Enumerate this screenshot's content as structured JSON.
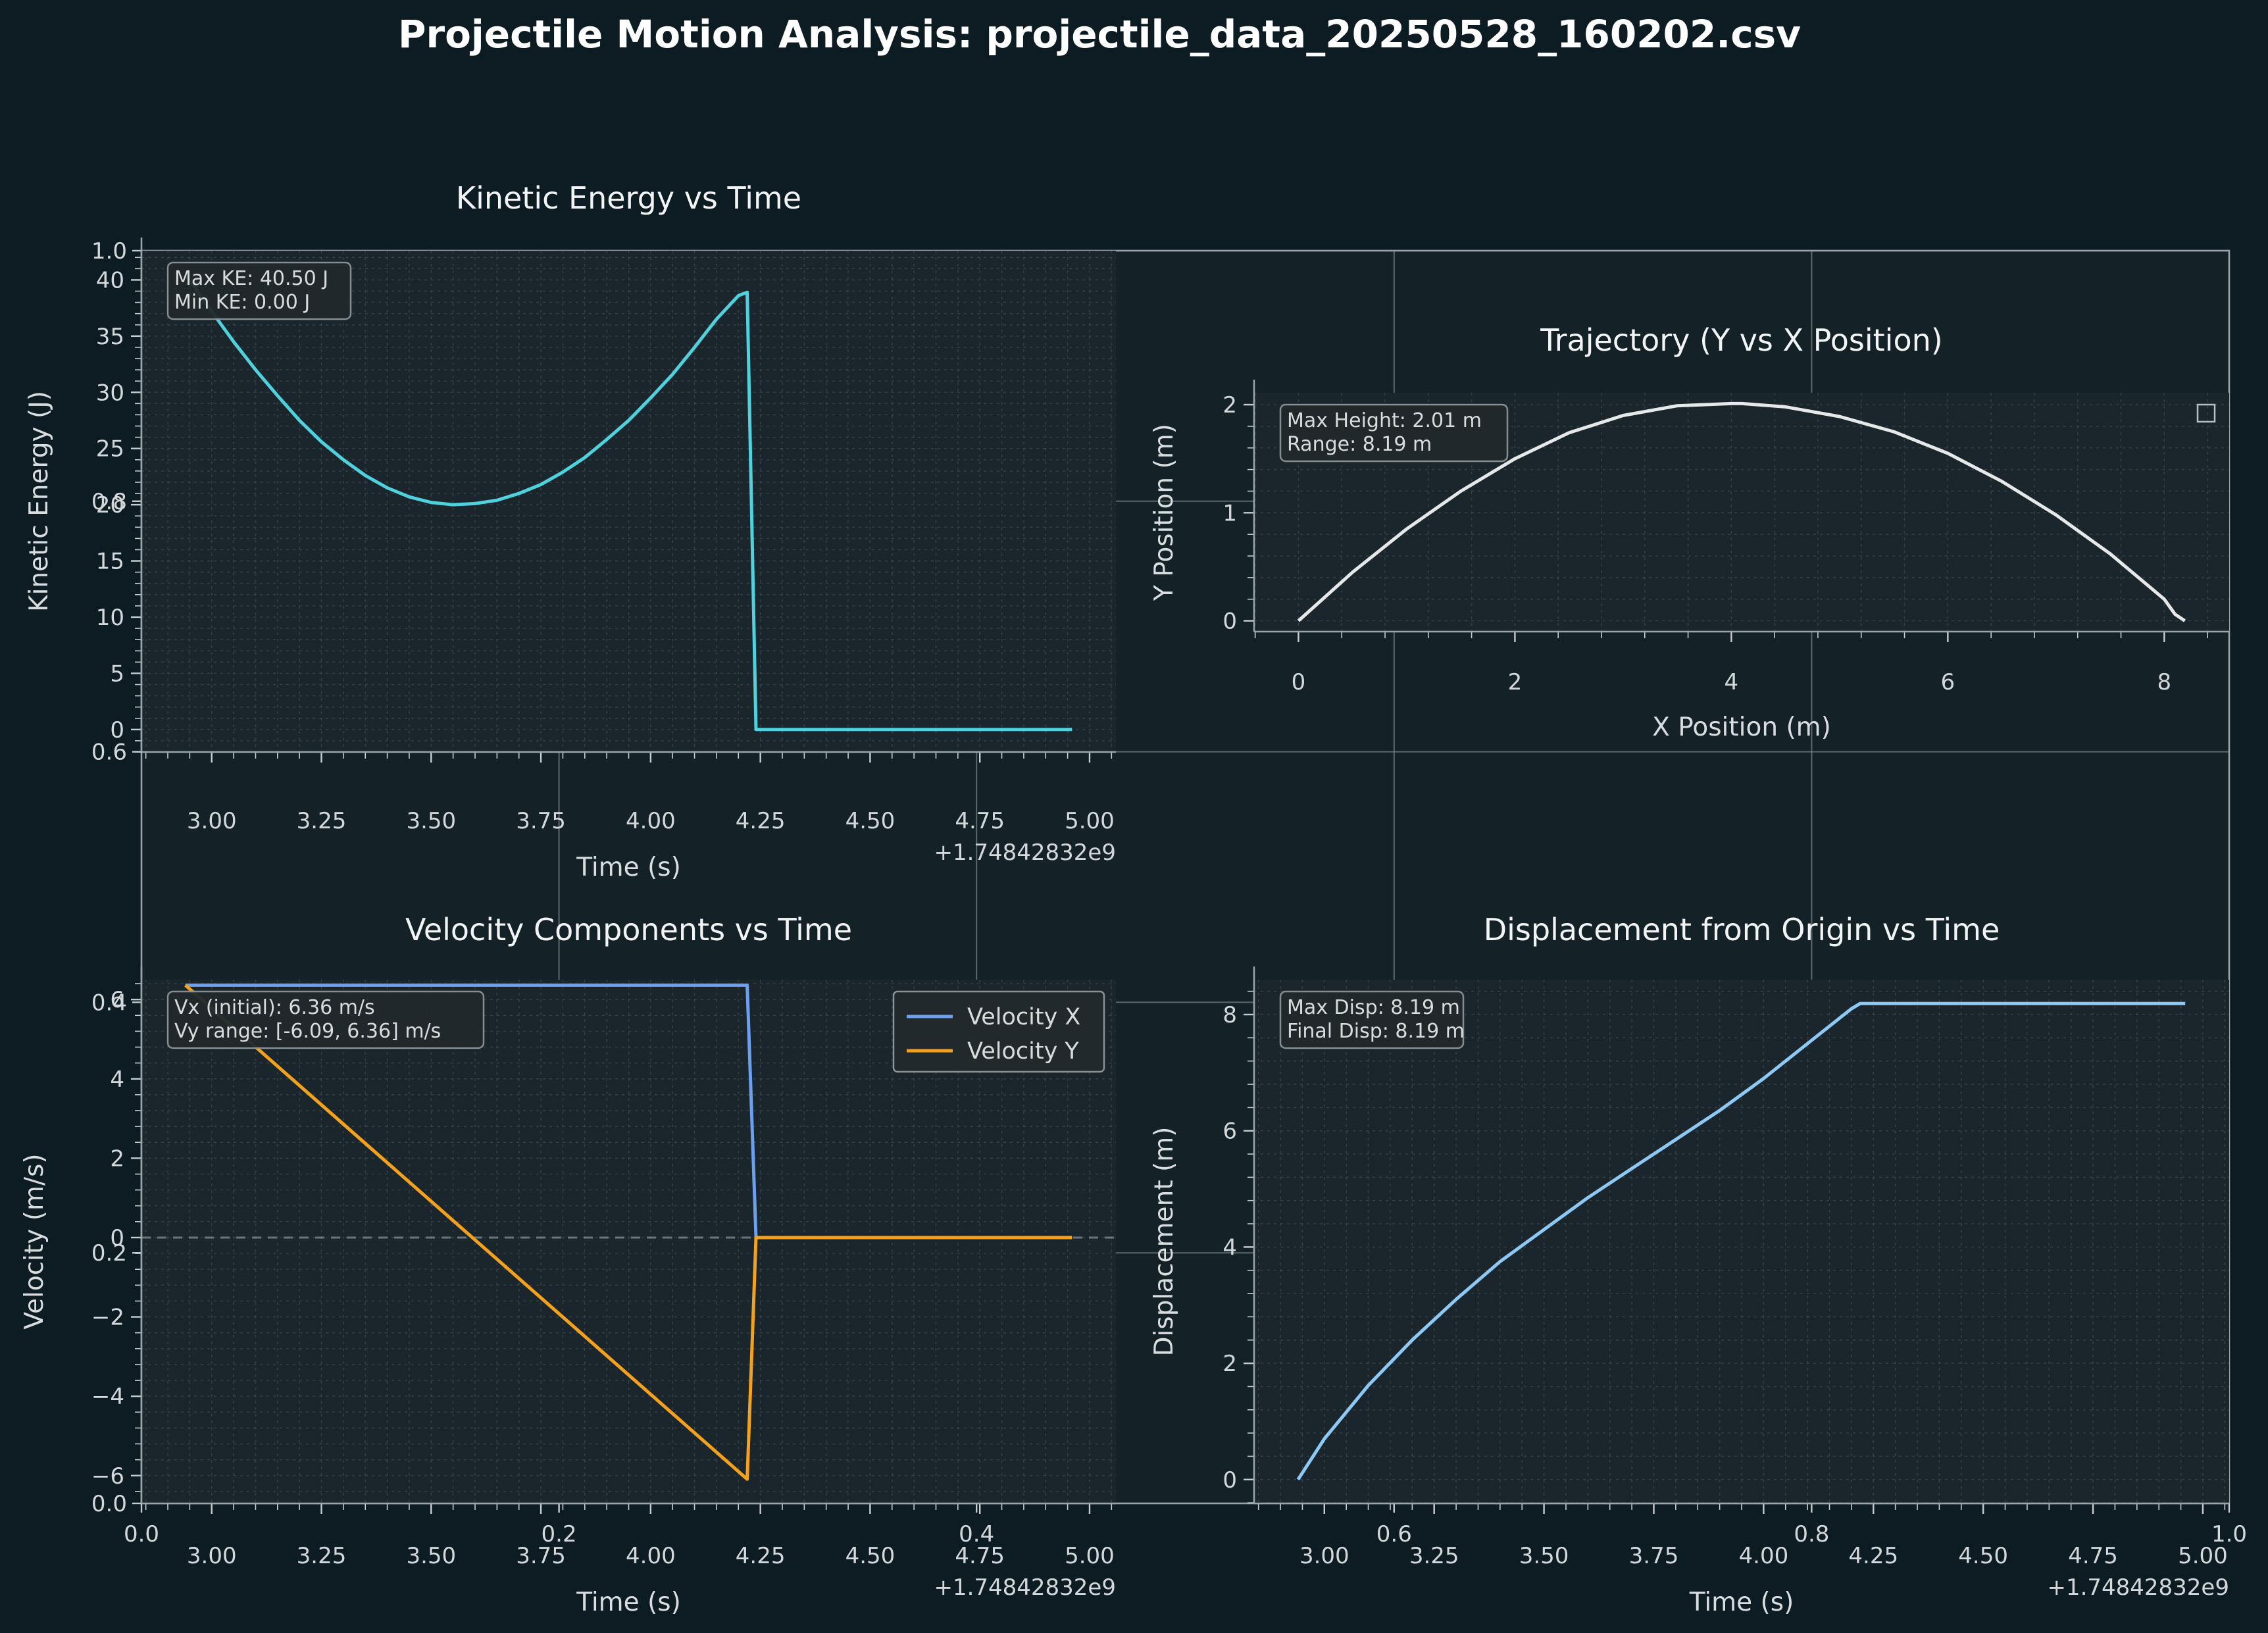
{
  "figure": {
    "title": "Projectile Motion Analysis: projectile_data_20250528_160202.csv"
  },
  "colors": {
    "figure_bg": "#0d1c22",
    "axes_bg": "#1a262c",
    "ke": "#4fd1de",
    "traj": "#e6e8ea",
    "vx": "#6c9ff0",
    "vy": "#f4a21e",
    "disp": "#8ec8f5"
  },
  "background_axes": {
    "x_ticks": [
      "0.0",
      "0.2",
      "0.4",
      "0.6",
      "0.8",
      "1.0"
    ],
    "y_ticks": [
      "0.0",
      "0.2",
      "0.4",
      "0.6",
      "0.8",
      "1.0"
    ]
  },
  "chart_data": [
    {
      "id": "ke",
      "type": "line",
      "title": "Kinetic Energy vs Time",
      "xlabel": "Time (s)",
      "ylabel": "Kinetic Energy (J)",
      "x_offset_label": "+1.74842832e9",
      "xlim": [
        2.84,
        5.06
      ],
      "ylim": [
        -2.0,
        42.6
      ],
      "x_ticks": [
        3.0,
        3.25,
        3.5,
        3.75,
        4.0,
        4.25,
        4.5,
        4.75,
        5.0
      ],
      "x_tick_labels": [
        "3.00",
        "3.25",
        "3.50",
        "3.75",
        "4.00",
        "4.25",
        "4.50",
        "4.75",
        "5.00"
      ],
      "y_ticks": [
        0,
        5,
        10,
        15,
        20,
        25,
        30,
        35,
        40
      ],
      "y_tick_labels": [
        "0",
        "5",
        "10",
        "15",
        "20",
        "25",
        "30",
        "35",
        "40"
      ],
      "grid": true,
      "annotation": [
        "Max KE: 40.50 J",
        "Min KE: 0.00 J"
      ],
      "series": [
        {
          "x": [
            2.94,
            3.0,
            3.05,
            3.1,
            3.15,
            3.2,
            3.25,
            3.3,
            3.35,
            3.4,
            3.45,
            3.5,
            3.55,
            3.6,
            3.65,
            3.7,
            3.75,
            3.8,
            3.85,
            3.9,
            3.95,
            4.0,
            4.05,
            4.1,
            4.15,
            4.2,
            4.22,
            4.24,
            4.3,
            4.5,
            4.7,
            4.96
          ],
          "values": [
            40.5,
            37.2,
            34.5,
            32.0,
            29.7,
            27.5,
            25.6,
            24.0,
            22.6,
            21.5,
            20.7,
            20.2,
            20.0,
            20.1,
            20.4,
            21.0,
            21.8,
            22.9,
            24.2,
            25.8,
            27.5,
            29.5,
            31.6,
            34.0,
            36.5,
            38.6,
            38.9,
            0.0,
            0.0,
            0.0,
            0.0,
            0.0
          ]
        }
      ]
    },
    {
      "id": "traj",
      "type": "line",
      "title": "Trajectory (Y vs X Position)",
      "xlabel": "X Position (m)",
      "ylabel": "Y Position (m)",
      "xlim": [
        -0.41,
        8.6
      ],
      "ylim": [
        -0.1,
        2.11
      ],
      "x_ticks": [
        0,
        2,
        4,
        6,
        8
      ],
      "x_tick_labels": [
        "0",
        "2",
        "4",
        "6",
        "8"
      ],
      "y_ticks": [
        0,
        1,
        2
      ],
      "y_tick_labels": [
        "0",
        "1",
        "2"
      ],
      "grid": true,
      "annotation": [
        "Max Height: 2.01 m",
        "Range: 8.19 m"
      ],
      "series": [
        {
          "x": [
            0.0,
            0.5,
            1.0,
            1.5,
            2.0,
            2.5,
            3.0,
            3.5,
            4.0,
            4.1,
            4.5,
            5.0,
            5.5,
            6.0,
            6.5,
            7.0,
            7.5,
            8.0,
            8.1,
            8.19
          ],
          "values": [
            0.0,
            0.45,
            0.85,
            1.2,
            1.5,
            1.74,
            1.9,
            1.99,
            2.01,
            2.01,
            1.98,
            1.89,
            1.75,
            1.55,
            1.29,
            0.98,
            0.62,
            0.2,
            0.06,
            0.0
          ]
        }
      ]
    },
    {
      "id": "vel",
      "type": "line",
      "title": "Velocity Components vs Time",
      "xlabel": "Time (s)",
      "ylabel": "Velocity (m/s)",
      "x_offset_label": "+1.74842832e9",
      "xlim": [
        2.84,
        5.06
      ],
      "ylim": [
        -6.7,
        6.5
      ],
      "x_ticks": [
        3.0,
        3.25,
        3.5,
        3.75,
        4.0,
        4.25,
        4.5,
        4.75,
        5.0
      ],
      "x_tick_labels": [
        "3.00",
        "3.25",
        "3.50",
        "3.75",
        "4.00",
        "4.25",
        "4.50",
        "4.75",
        "5.00"
      ],
      "y_ticks": [
        -6,
        -4,
        -2,
        0,
        2,
        4,
        6
      ],
      "y_tick_labels": [
        "−6",
        "−4",
        "−2",
        "0",
        "2",
        "4",
        "6"
      ],
      "grid": true,
      "legend": "top-right",
      "annotation": [
        "Vx (initial): 6.36 m/s",
        "Vy range: [-6.09, 6.36] m/s"
      ],
      "series": [
        {
          "name": "Velocity X",
          "x": [
            2.94,
            4.22,
            4.24,
            4.96
          ],
          "values": [
            6.36,
            6.36,
            0.0,
            0.0
          ]
        },
        {
          "name": "Velocity Y",
          "x": [
            2.94,
            4.22,
            4.24,
            4.96
          ],
          "values": [
            6.36,
            -6.09,
            0.0,
            0.0
          ]
        }
      ]
    },
    {
      "id": "disp",
      "type": "line",
      "title": "Displacement from Origin vs Time",
      "xlabel": "Time (s)",
      "ylabel": "Displacement (m)",
      "x_offset_label": "+1.74842832e9",
      "xlim": [
        2.84,
        5.06
      ],
      "ylim": [
        -0.41,
        8.6
      ],
      "x_ticks": [
        3.0,
        3.25,
        3.5,
        3.75,
        4.0,
        4.25,
        4.5,
        4.75,
        5.0
      ],
      "x_tick_labels": [
        "3.00",
        "3.25",
        "3.50",
        "3.75",
        "4.00",
        "4.25",
        "4.50",
        "4.75",
        "5.00"
      ],
      "y_ticks": [
        0,
        2,
        4,
        6,
        8
      ],
      "y_tick_labels": [
        "0",
        "2",
        "4",
        "6",
        "8"
      ],
      "grid": true,
      "annotation": [
        "Max Disp: 8.19 m",
        "Final Disp: 8.19 m"
      ],
      "series": [
        {
          "x": [
            2.94,
            3.0,
            3.1,
            3.2,
            3.3,
            3.4,
            3.5,
            3.6,
            3.7,
            3.8,
            3.9,
            4.0,
            4.1,
            4.2,
            4.22,
            4.5,
            4.96
          ],
          "values": [
            0.0,
            0.7,
            1.62,
            2.4,
            3.1,
            3.75,
            4.3,
            4.85,
            5.35,
            5.85,
            6.35,
            6.9,
            7.5,
            8.1,
            8.19,
            8.19,
            8.19
          ]
        }
      ]
    }
  ]
}
